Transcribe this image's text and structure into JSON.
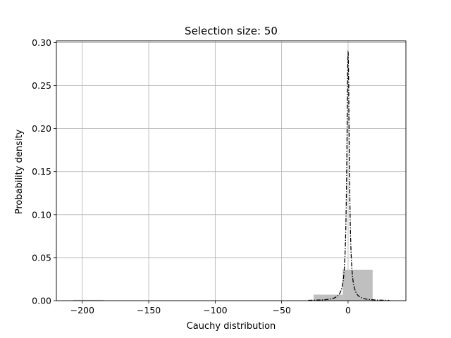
{
  "chart_data": {
    "type": "bar",
    "title": "Selection size: 50",
    "xlabel": "Cauchy distribution",
    "ylabel": "Probability density",
    "xlim": [
      -219.5,
      43.5
    ],
    "ylim": [
      0,
      0.302
    ],
    "grid": true,
    "xticks": [
      -200,
      -150,
      -100,
      -50,
      0
    ],
    "xtick_labels": [
      "−200",
      "−150",
      "−100",
      "−50",
      "0"
    ],
    "yticks": [
      0.0,
      0.05,
      0.1,
      0.15,
      0.2,
      0.25,
      0.3
    ],
    "ytick_labels": [
      "0.00",
      "0.05",
      "0.10",
      "0.15",
      "0.20",
      "0.25",
      "0.30"
    ],
    "histogram": {
      "color": "#bfbfbf",
      "bins": [
        {
          "x0": -207.0,
          "x1": -184.0,
          "value": 0.0009
        },
        {
          "x0": -184.0,
          "x1": -161.0,
          "value": 0.0
        },
        {
          "x0": -161.0,
          "x1": -138.0,
          "value": 0.0
        },
        {
          "x0": -138.0,
          "x1": -115.0,
          "value": 0.0
        },
        {
          "x0": -115.0,
          "x1": -92.0,
          "value": 0.0
        },
        {
          "x0": -92.0,
          "x1": -69.0,
          "value": 0.0
        },
        {
          "x0": -69.0,
          "x1": -46.0,
          "value": 0.0
        },
        {
          "x0": -46.0,
          "x1": -26.0,
          "value": 0.0
        },
        {
          "x0": -26.0,
          "x1": -4.0,
          "value": 0.007
        },
        {
          "x0": -4.0,
          "x1": 18.5,
          "value": 0.036
        }
      ]
    },
    "density_curve": {
      "style": "dash-dot",
      "color": "#000000",
      "distribution": "cauchy",
      "location": 0,
      "scale": 1.1,
      "x_range": [
        -30,
        31
      ]
    }
  }
}
